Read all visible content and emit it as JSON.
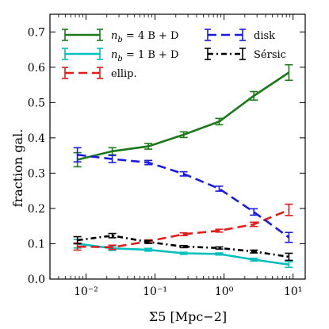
{
  "chart_data": {
    "type": "line",
    "xlabel": "Σ5 [Mpc−2]",
    "ylabel": "fraction gal.",
    "x_scale": "log",
    "xlim": [
      0.003,
      15
    ],
    "ylim": [
      0.0,
      0.75
    ],
    "x_ticks": [
      {
        "value": 0.01,
        "label": "10⁻²"
      },
      {
        "value": 0.1,
        "label": "10⁻¹"
      },
      {
        "value": 1,
        "label": "10⁰"
      },
      {
        "value": 10,
        "label": "10¹"
      }
    ],
    "y_ticks": [
      {
        "value": 0.0,
        "label": "0.0"
      },
      {
        "value": 0.1,
        "label": "0.1"
      },
      {
        "value": 0.2,
        "label": "0.2"
      },
      {
        "value": 0.3,
        "label": "0.3"
      },
      {
        "value": 0.4,
        "label": "0.4"
      },
      {
        "value": 0.5,
        "label": "0.5"
      },
      {
        "value": 0.6,
        "label": "0.6"
      },
      {
        "value": 0.7,
        "label": "0.7"
      }
    ],
    "x": [
      0.0075,
      0.024,
      0.08,
      0.26,
      0.85,
      2.7,
      8.7
    ],
    "series": [
      {
        "name": "nb = 4 B+D",
        "color": "#1a7a1a",
        "style": "solid",
        "values": [
          0.338,
          0.362,
          0.376,
          0.409,
          0.446,
          0.519,
          0.585
        ],
        "errors": [
          0.02,
          0.01,
          0.008,
          0.008,
          0.009,
          0.012,
          0.022
        ]
      },
      {
        "name": "nb = 1 B+D",
        "color": "#00bfbf",
        "style": "solid",
        "values": [
          0.1,
          0.087,
          0.083,
          0.073,
          0.071,
          0.055,
          0.041
        ],
        "errors": [
          0.012,
          0.006,
          0.004,
          0.003,
          0.003,
          0.004,
          0.008
        ]
      },
      {
        "name": "ellip.",
        "color": "#e51a1a",
        "style": "dashed",
        "values": [
          0.092,
          0.09,
          0.107,
          0.127,
          0.137,
          0.155,
          0.196
        ],
        "errors": [
          0.01,
          0.006,
          0.004,
          0.004,
          0.004,
          0.006,
          0.016
        ]
      },
      {
        "name": "disk",
        "color": "#1a1ae5",
        "style": "dashed",
        "values": [
          0.352,
          0.34,
          0.33,
          0.298,
          0.256,
          0.19,
          0.118
        ],
        "errors": [
          0.02,
          0.01,
          0.006,
          0.006,
          0.007,
          0.009,
          0.014
        ]
      },
      {
        "name": "Sérsic",
        "color": "#000000",
        "style": "dashdot",
        "values": [
          0.11,
          0.123,
          0.105,
          0.092,
          0.088,
          0.078,
          0.063
        ],
        "errors": [
          0.01,
          0.006,
          0.004,
          0.003,
          0.003,
          0.004,
          0.01
        ]
      }
    ],
    "legend": {
      "placement": "top",
      "columns": [
        [
          {
            "series": 0,
            "math_n": "n",
            "math_sub": "b",
            "rest": " = 4 B + D"
          },
          {
            "series": 1,
            "math_n": "n",
            "math_sub": "b",
            "rest": " = 1 B + D"
          },
          {
            "series": 2,
            "label": "ellip."
          }
        ],
        [
          {
            "series": 3,
            "label": "disk"
          },
          {
            "series": 4,
            "label": "Sérsic"
          }
        ]
      ]
    }
  }
}
